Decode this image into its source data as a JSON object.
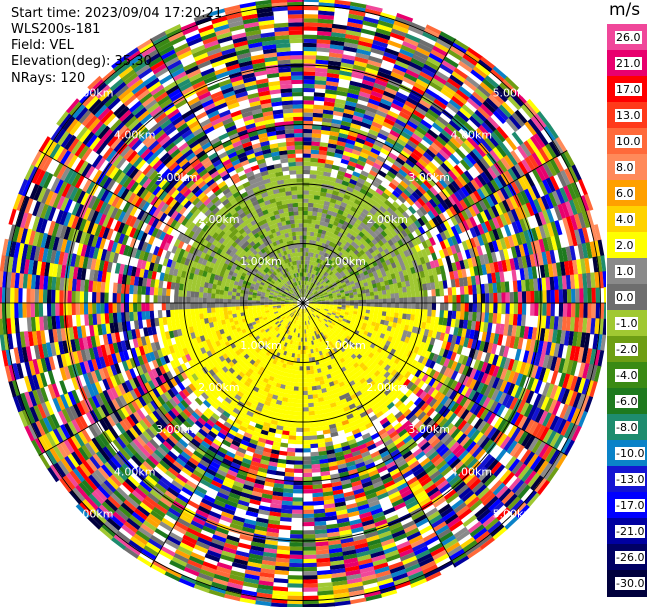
{
  "info": {
    "start_time": "Start time: 2023/09/04 17:20:21",
    "instrument": "WLS200s-181",
    "field": "Field: VEL",
    "elevation": "Elevation(deg): 35.30",
    "nrays": "NRays: 120"
  },
  "colorbar": {
    "unit": "m/s",
    "labels": [
      "26.0",
      "21.0",
      "17.0",
      "13.0",
      "10.0",
      "8.0",
      "6.0",
      "4.0",
      "2.0",
      "1.0",
      "0.0",
      "-1.0",
      "-2.0",
      "-4.0",
      "-6.0",
      "-8.0",
      "-10.0",
      "-13.0",
      "-17.0",
      "-21.0",
      "-26.0",
      "-30.0"
    ],
    "colors": [
      "#f0479a",
      "#e8006e",
      "#ff0000",
      "#ff3a1a",
      "#ff6a3a",
      "#ff8a5a",
      "#ffa000",
      "#ffd200",
      "#ffff00",
      "#8a8a8a",
      "#6e6e6e",
      "#a0c832",
      "#6e9e14",
      "#3a8a14",
      "#1e7a1e",
      "#1e8c6e",
      "#0a82c8",
      "#1414d2",
      "#0000ff",
      "#0000a0",
      "#000064",
      "#00003c"
    ]
  },
  "chart_data": {
    "type": "heatmap",
    "title": "",
    "field": "VEL",
    "unit": "m/s",
    "range_rings_km": [
      1.0,
      2.0,
      3.0,
      4.0,
      5.0
    ],
    "ring_labels": [
      "1.00km",
      "2.00km",
      "3.00km",
      "4.00km",
      "5.00km"
    ],
    "nrays": 120,
    "elevation_deg": 35.3,
    "color_scale": [
      -30,
      26
    ],
    "valid_data_extent_km": 2.5,
    "near_field_pattern": "inbound (2 to 4 m/s, yellow) in the south sector; outbound (-1 to -4 m/s, green/grey) in the north sector",
    "far_field_pattern": "noise (random values across the full scale) beyond about 2.5 km"
  }
}
